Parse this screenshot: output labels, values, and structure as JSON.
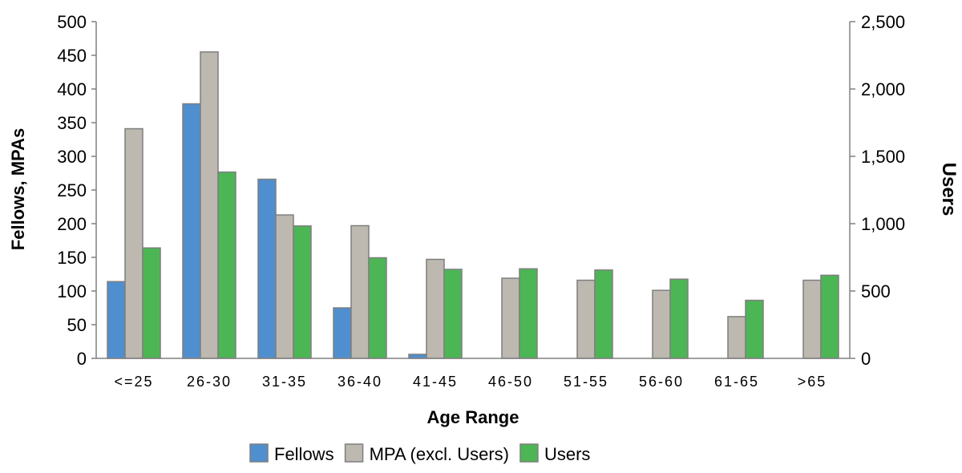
{
  "chart_data": {
    "type": "bar",
    "categories": [
      "<=25",
      "26-30",
      "31-35",
      "36-40",
      "41-45",
      "46-50",
      "51-55",
      "56-60",
      "61-65",
      ">65"
    ],
    "series": [
      {
        "name": "Fellows",
        "axis": "left",
        "color": "#4f8fcf",
        "values": [
          114,
          378,
          266,
          75,
          6,
          0,
          0,
          0,
          0,
          0
        ]
      },
      {
        "name": "MPA (excl. Users)",
        "axis": "left",
        "color": "#bdb8b0",
        "values": [
          341,
          455,
          213,
          197,
          147,
          119,
          116,
          101,
          62,
          116
        ]
      },
      {
        "name": "Users",
        "axis": "right",
        "color": "#4cb655",
        "values": [
          820,
          1383,
          983,
          747,
          661,
          665,
          656,
          588,
          431,
          617
        ]
      }
    ],
    "xlabel": "Age Range",
    "ylabel": "Fellows, MPAs",
    "y2label": "Users",
    "ylim": [
      0,
      500
    ],
    "y2lim": [
      0,
      2500
    ],
    "yticks": [
      "0",
      "50",
      "100",
      "150",
      "200",
      "250",
      "300",
      "350",
      "400",
      "450",
      "500"
    ],
    "y2ticks": [
      "0",
      "500",
      "1,000",
      "1,500",
      "2,000",
      "2,500"
    ],
    "legend_position": "bottom",
    "grid": false
  }
}
